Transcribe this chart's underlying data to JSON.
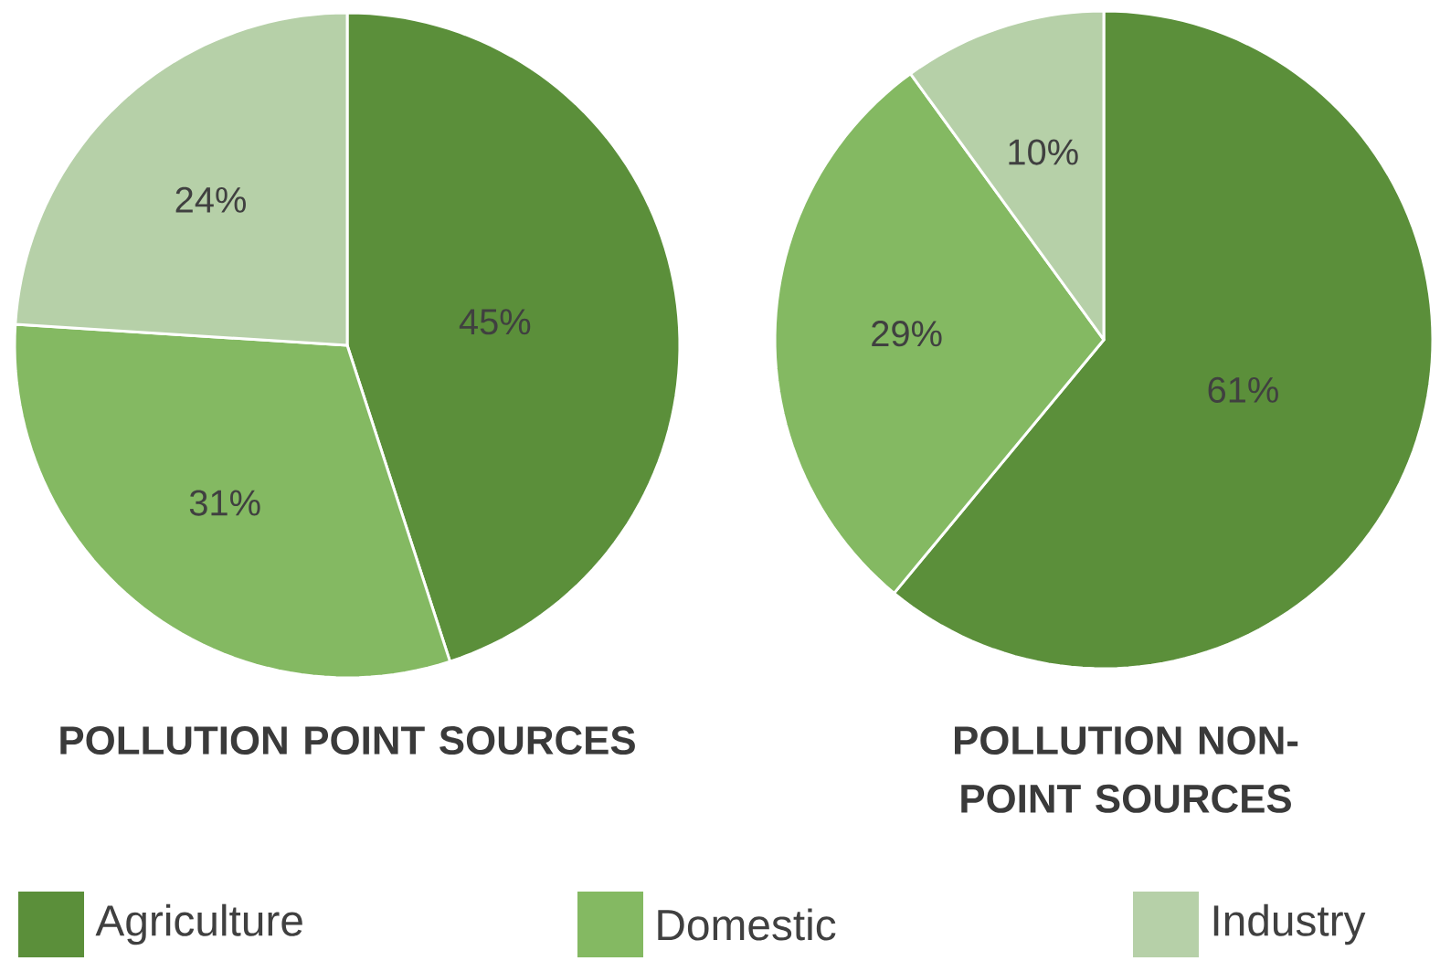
{
  "chart_data": [
    {
      "type": "pie",
      "title": "POLLUTION POINT SOURCES",
      "categories": [
        "Agriculture",
        "Domestic",
        "Industry"
      ],
      "values": [
        45,
        31,
        24
      ],
      "value_labels": [
        "45%",
        "31%",
        "24%"
      ],
      "colors": [
        "#5b8f3a",
        "#84b962",
        "#b6d0a8"
      ],
      "legend": "bottom"
    },
    {
      "type": "pie",
      "title": "POLLUTION NON-POINT SOURCES",
      "values": [
        61,
        29,
        10
      ],
      "value_labels": [
        "61%",
        "29%",
        "10%"
      ],
      "colors": [
        "#5b8f3a",
        "#84b962",
        "#b6d0a8"
      ]
    }
  ]
}
